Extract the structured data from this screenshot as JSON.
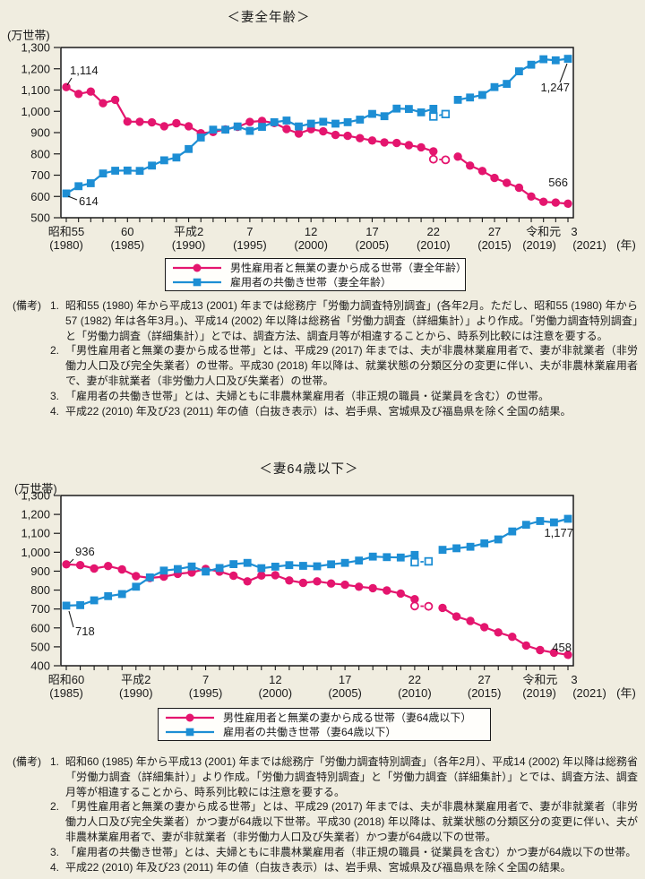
{
  "page_bg": "#f0ede0",
  "chart_data": [
    {
      "type": "line",
      "title": "＜妻全年齢＞",
      "unit": "(万世帯)",
      "ylim": [
        500,
        1300
      ],
      "ytick_step": 100,
      "x_range": {
        "start": 1980,
        "end": 2021
      },
      "x_unit": "(年)",
      "grid": false,
      "legend_position": "below",
      "xticks": [
        {
          "year": 1980,
          "era": "昭和55",
          "west": "(1980)"
        },
        {
          "year": 1985,
          "era": "60",
          "west": "(1985)"
        },
        {
          "year": 1990,
          "era": "平成2",
          "west": "(1990)"
        },
        {
          "year": 1995,
          "era": "7",
          "west": "(1995)"
        },
        {
          "year": 2000,
          "era": "12",
          "west": "(2000)"
        },
        {
          "year": 2005,
          "era": "17",
          "west": "(2005)"
        },
        {
          "year": 2010,
          "era": "22",
          "west": "(2010)"
        },
        {
          "year": 2015,
          "era": "27",
          "west": "(2015)"
        },
        {
          "year": 2019,
          "era": "令和元",
          "west": "(2019)"
        },
        {
          "year": 2021,
          "era": "3",
          "west": "(2021)"
        }
      ],
      "series": [
        {
          "name": "男性雇用者と無業の妻から成る世帯（妻全年齢）",
          "color": "#e4156e",
          "marker": "circle",
          "values": [
            1114,
            1082,
            1093,
            1038,
            1054,
            952,
            951,
            948,
            930,
            944,
            930,
            897,
            903,
            915,
            927,
            950,
            955,
            945,
            917,
            896,
            916,
            906,
            889,
            885,
            874,
            863,
            854,
            851,
            841,
            831,
            812,
            null,
            787,
            745,
            720,
            687,
            664,
            641,
            600,
            575,
            571,
            566
          ],
          "open_points": [
            {
              "year": 2010,
              "value": 775
            },
            {
              "year": 2011,
              "value": 772
            }
          ]
        },
        {
          "name": "雇用者の共働き世帯（妻全年齢）",
          "color": "#1d8ed4",
          "marker": "square",
          "values": [
            614,
            648,
            662,
            708,
            721,
            722,
            720,
            745,
            770,
            783,
            823,
            877,
            914,
            914,
            929,
            908,
            927,
            949,
            957,
            929,
            942,
            951,
            942,
            949,
            961,
            988,
            977,
            1013,
            1011,
            995,
            1012,
            null,
            1054,
            1065,
            1077,
            1114,
            1129,
            1188,
            1219,
            1245,
            1240,
            1247
          ],
          "open_points": [
            {
              "year": 2010,
              "value": 976
            },
            {
              "year": 2011,
              "value": 987
            }
          ]
        }
      ],
      "annotations": [
        "1,114",
        "614",
        "1,247",
        "566"
      ],
      "legend": [
        "男性雇用者と無業の妻から成る世帯（妻全年齢）",
        "雇用者の共働き世帯（妻全年齢）"
      ],
      "notes_label": "(備考)",
      "notes": [
        {
          "num": "1.",
          "text": "昭和55 (1980) 年から平成13 (2001) 年までは総務庁「労働力調査特別調査」(各年2月。ただし、昭和55 (1980) 年から57 (1982) 年は各年3月。)、平成14 (2002) 年以降は総務省「労働力調査（詳細集計）」より作成。「労働力調査特別調査」と「労働力調査（詳細集計）」とでは、調査方法、調査月等が相違することから、時系列比較には注意を要する。"
        },
        {
          "num": "2.",
          "text": "「男性雇用者と無業の妻から成る世帯」とは、平成29 (2017) 年までは、夫が非農林業雇用者で、妻が非就業者（非労働力人口及び完全失業者）の世帯。平成30 (2018) 年以降は、就業状態の分類区分の変更に伴い、夫が非農林業雇用者で、妻が非就業者（非労働力人口及び失業者）の世帯。"
        },
        {
          "num": "3.",
          "text": "「雇用者の共働き世帯」とは、夫婦ともに非農林業雇用者（非正規の職員・従業員を含む）の世帯。"
        },
        {
          "num": "4.",
          "text": "平成22 (2010) 年及び23 (2011) 年の値（白抜き表示）は、岩手県、宮城県及び福島県を除く全国の結果。"
        }
      ]
    },
    {
      "type": "line",
      "title": "＜妻64歳以下＞",
      "unit": "(万世帯)",
      "ylim": [
        400,
        1300
      ],
      "ytick_step": 100,
      "x_range": {
        "start": 1985,
        "end": 2021
      },
      "x_unit": "(年)",
      "grid": false,
      "legend_position": "below",
      "xticks": [
        {
          "year": 1985,
          "era": "昭和60",
          "west": "(1985)"
        },
        {
          "year": 1990,
          "era": "平成2",
          "west": "(1990)"
        },
        {
          "year": 1995,
          "era": "7",
          "west": "(1995)"
        },
        {
          "year": 2000,
          "era": "12",
          "west": "(2000)"
        },
        {
          "year": 2005,
          "era": "17",
          "west": "(2005)"
        },
        {
          "year": 2010,
          "era": "22",
          "west": "(2010)"
        },
        {
          "year": 2015,
          "era": "27",
          "west": "(2015)"
        },
        {
          "year": 2019,
          "era": "令和元",
          "west": "(2019)"
        },
        {
          "year": 2021,
          "era": "3",
          "west": "(2021)"
        }
      ],
      "series": [
        {
          "name": "男性雇用者と無業の妻から成る世帯（妻64歳以下）",
          "color": "#e4156e",
          "marker": "circle",
          "values": [
            936,
            932,
            914,
            927,
            909,
            874,
            864,
            871,
            886,
            893,
            912,
            898,
            876,
            846,
            877,
            879,
            851,
            838,
            846,
            835,
            828,
            818,
            810,
            798,
            782,
            752,
            null,
            706,
            660,
            637,
            604,
            576,
            553,
            507,
            483,
            469,
            458
          ],
          "open_points": [
            {
              "year": 2010,
              "value": 716
            },
            {
              "year": 2011,
              "value": 714
            }
          ]
        },
        {
          "name": "雇用者の共働き世帯（妻64歳以下）",
          "color": "#1d8ed4",
          "marker": "square",
          "values": [
            718,
            720,
            746,
            768,
            779,
            818,
            867,
            903,
            911,
            925,
            898,
            917,
            937,
            944,
            916,
            924,
            932,
            928,
            926,
            936,
            944,
            956,
            977,
            974,
            972,
            986,
            null,
            1013,
            1021,
            1029,
            1047,
            1068,
            1110,
            1145,
            1165,
            1158,
            1177
          ],
          "open_points": [
            {
              "year": 2010,
              "value": 947
            },
            {
              "year": 2011,
              "value": 952
            }
          ]
        }
      ],
      "annotations": [
        "936",
        "718",
        "1,177",
        "458"
      ],
      "legend": [
        "男性雇用者と無業の妻から成る世帯（妻64歳以下）",
        "雇用者の共働き世帯（妻64歳以下）"
      ],
      "notes_label": "(備考)",
      "notes": [
        {
          "num": "1.",
          "text": "昭和60 (1985) 年から平成13 (2001) 年までは総務庁「労働力調査特別調査」（各年2月）、平成14 (2002) 年以降は総務省「労働力調査（詳細集計）」より作成。「労働力調査特別調査」と「労働力調査（詳細集計）」とでは、調査方法、調査月等が相違することから、時系列比較には注意を要する。"
        },
        {
          "num": "2.",
          "text": "「男性雇用者と無業の妻から成る世帯」とは、平成29 (2017) 年までは、夫が非農林業雇用者で、妻が非就業者（非労働力人口及び完全失業者）かつ妻が64歳以下世帯。平成30 (2018) 年以降は、就業状態の分類区分の変更に伴い、夫が非農林業雇用者で、妻が非就業者（非労働力人口及び失業者）かつ妻が64歳以下の世帯。"
        },
        {
          "num": "3.",
          "text": "「雇用者の共働き世帯」とは、夫婦ともに非農林業雇用者（非正規の職員・従業員を含む）かつ妻が64歳以下の世帯。"
        },
        {
          "num": "4.",
          "text": "平成22 (2010) 年及び23 (2011) 年の値（白抜き表示）は、岩手県、宮城県及び福島県を除く全国の結果。"
        }
      ]
    }
  ]
}
